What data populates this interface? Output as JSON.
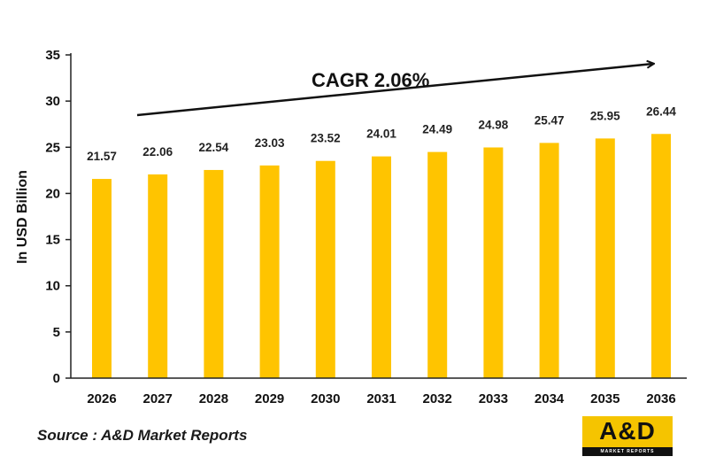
{
  "chart_data": {
    "type": "bar",
    "categories": [
      "2026",
      "2027",
      "2028",
      "2029",
      "2030",
      "2031",
      "2032",
      "2033",
      "2034",
      "2035",
      "2036"
    ],
    "values": [
      21.57,
      22.06,
      22.54,
      23.03,
      23.52,
      24.01,
      24.49,
      24.98,
      25.47,
      25.95,
      26.44
    ],
    "data_labels": [
      "21.57",
      "22.06",
      "22.54",
      "23.03",
      "23.52",
      "24.01",
      "24.49",
      "24.98",
      "25.47",
      "25.95",
      "26.44"
    ],
    "ylabel": "In USD Billion",
    "ylim": [
      0,
      35
    ],
    "yticks": [
      0,
      5,
      10,
      15,
      20,
      25,
      30,
      35
    ],
    "annotation": "CAGR 2.06%",
    "bar_color": "#ffc400",
    "grid": false,
    "legend": "none"
  },
  "source": "Source : A&D Market Reports",
  "logo": {
    "text": "A&D",
    "tagline": "MARKET REPORTS",
    "background": "#f5c400"
  }
}
